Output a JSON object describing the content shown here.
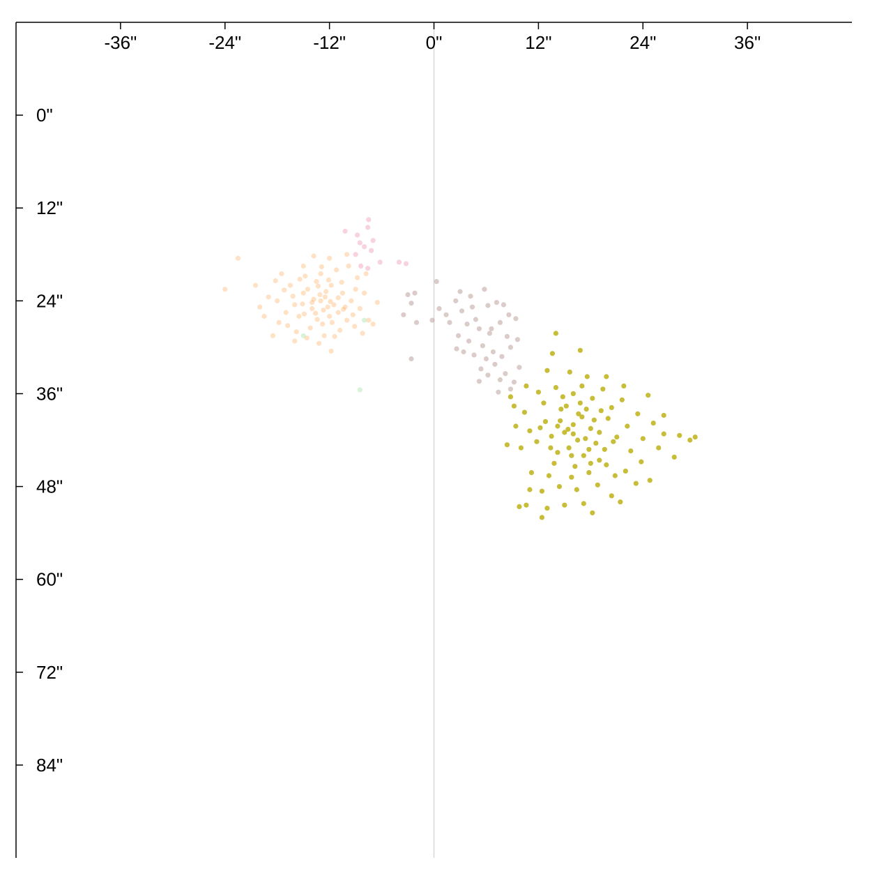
{
  "chart_data": {
    "type": "scatter",
    "title": "",
    "xlabel": "",
    "ylabel": "",
    "xlim": [
      -48,
      48
    ],
    "ylim": [
      -12,
      96
    ],
    "y_inverted": true,
    "x_axis_position": "top",
    "x_ticks": [
      {
        "value": -36,
        "label": "-36\""
      },
      {
        "value": -24,
        "label": "-24\""
      },
      {
        "value": -12,
        "label": "-12\""
      },
      {
        "value": 0,
        "label": "0\""
      },
      {
        "value": 12,
        "label": "12\""
      },
      {
        "value": 24,
        "label": "24\""
      },
      {
        "value": 36,
        "label": "36\""
      }
    ],
    "y_ticks": [
      {
        "value": 0,
        "label": "0\""
      },
      {
        "value": 12,
        "label": "12\""
      },
      {
        "value": 24,
        "label": "24\""
      },
      {
        "value": 36,
        "label": "36\""
      },
      {
        "value": 48,
        "label": "48\""
      },
      {
        "value": 60,
        "label": "60\""
      },
      {
        "value": 72,
        "label": "72\""
      },
      {
        "value": 84,
        "label": "84\""
      }
    ],
    "reference_line_x": 0,
    "grid": false,
    "series": [
      {
        "color": "#ff9f40",
        "opacity": 0.3,
        "points": [
          [
            -13,
            24
          ],
          [
            -12.5,
            23.5
          ],
          [
            -14,
            25
          ],
          [
            -11.5,
            24.5
          ],
          [
            -15,
            23
          ],
          [
            -12,
            26
          ],
          [
            -10.5,
            23
          ],
          [
            -13.5,
            21.5
          ],
          [
            -16,
            24.5
          ],
          [
            -11,
            25.5
          ],
          [
            -14.5,
            22.5
          ],
          [
            -12.8,
            27
          ],
          [
            -9.5,
            24
          ],
          [
            -17,
            25.5
          ],
          [
            -13,
            20.5
          ],
          [
            -10,
            26.5
          ],
          [
            -15.5,
            26
          ],
          [
            -11.8,
            22
          ],
          [
            -14.2,
            27.5
          ],
          [
            -12.2,
            24.8
          ],
          [
            -16.5,
            22
          ],
          [
            -8.5,
            25
          ],
          [
            -13.8,
            23.8
          ],
          [
            -11.2,
            20
          ],
          [
            -18,
            24
          ],
          [
            -9,
            22.5
          ],
          [
            -15.8,
            28
          ],
          [
            -12.6,
            28.5
          ],
          [
            -10.8,
            27.8
          ],
          [
            -14.8,
            20.8
          ],
          [
            -19.5,
            26
          ],
          [
            -20.5,
            22
          ],
          [
            -22.5,
            18.5
          ],
          [
            -24,
            22.5
          ],
          [
            -18.5,
            28.5
          ],
          [
            -13.2,
            29.5
          ],
          [
            -11.8,
            30.5
          ],
          [
            -8,
            23
          ],
          [
            -7.5,
            26.5
          ],
          [
            -9.8,
            19.5
          ],
          [
            -12,
            18.5
          ],
          [
            -15,
            19.5
          ],
          [
            -17.5,
            20.5
          ],
          [
            -16.8,
            27.2
          ],
          [
            -13.6,
            25.6
          ],
          [
            -12.4,
            22.8
          ],
          [
            -11,
            23.6
          ],
          [
            -14,
            24.2
          ],
          [
            -13.4,
            26.4
          ],
          [
            -10.2,
            24.8
          ],
          [
            -8.8,
            21
          ],
          [
            -16.2,
            23.4
          ],
          [
            -19,
            23.5
          ],
          [
            -17.8,
            26.8
          ],
          [
            -7,
            27
          ],
          [
            -8.2,
            28.2
          ],
          [
            -10.6,
            21.6
          ],
          [
            -12.9,
            19.6
          ],
          [
            -15.4,
            21.2
          ],
          [
            -11.4,
            28.6
          ],
          [
            -14.6,
            28.8
          ],
          [
            -13.1,
            23.2
          ],
          [
            -12.7,
            25.2
          ],
          [
            -11.7,
            26.8
          ],
          [
            -9.3,
            25.8
          ],
          [
            -17.2,
            22.6
          ],
          [
            -20,
            24.8
          ],
          [
            -6.5,
            24.2
          ],
          [
            -7.8,
            20.5
          ],
          [
            -10,
            18
          ],
          [
            -13.8,
            18.2
          ],
          [
            -16,
            29.2
          ],
          [
            -14.9,
            25.7
          ],
          [
            -12.1,
            21.3
          ],
          [
            -10.4,
            25.1
          ],
          [
            -11.9,
            24.1
          ],
          [
            -13.3,
            22.1
          ],
          [
            -15.1,
            24.4
          ],
          [
            -9.1,
            27.3
          ],
          [
            -18.2,
            21.4
          ]
        ]
      },
      {
        "color": "#f2a8c0",
        "opacity": 0.5,
        "points": [
          [
            -7.5,
            13.5
          ],
          [
            -7.6,
            14.5
          ],
          [
            -8.8,
            15.5
          ],
          [
            -8.5,
            16.5
          ],
          [
            -10.2,
            15
          ],
          [
            -8,
            17
          ],
          [
            -7.2,
            17.5
          ],
          [
            -8.4,
            19.5
          ],
          [
            -7.6,
            19.8
          ],
          [
            -6.2,
            19
          ],
          [
            -4,
            19
          ],
          [
            -3.2,
            19.2
          ],
          [
            -9,
            18
          ],
          [
            -7,
            16.2
          ]
        ]
      },
      {
        "color": "#b89a96",
        "opacity": 0.5,
        "points": [
          [
            0.3,
            21.5
          ],
          [
            -2.2,
            23
          ],
          [
            -3,
            23.2
          ],
          [
            -2.6,
            24.3
          ],
          [
            -3.5,
            25.8
          ],
          [
            -2,
            26.8
          ],
          [
            -0.2,
            26.5
          ],
          [
            0.6,
            25
          ],
          [
            -2.6,
            31.5
          ],
          [
            2.5,
            24
          ],
          [
            3.2,
            25.3
          ],
          [
            4.4,
            24.8
          ],
          [
            4.8,
            26.4
          ],
          [
            5.8,
            22.5
          ],
          [
            6.2,
            24.6
          ],
          [
            7.2,
            24.2
          ],
          [
            8,
            24.5
          ],
          [
            8.6,
            25.8
          ],
          [
            9.4,
            26.3
          ],
          [
            7.6,
            26.8
          ],
          [
            6.4,
            28.2
          ],
          [
            5.2,
            27.6
          ],
          [
            3.8,
            27
          ],
          [
            2.8,
            28.5
          ],
          [
            4,
            29.2
          ],
          [
            5.6,
            29.8
          ],
          [
            6.8,
            30.6
          ],
          [
            7.8,
            31.2
          ],
          [
            8.8,
            30
          ],
          [
            9.6,
            29
          ],
          [
            6,
            31.5
          ],
          [
            7,
            32.2
          ],
          [
            8.2,
            33.4
          ],
          [
            9.2,
            34.5
          ],
          [
            8.8,
            35.4
          ],
          [
            7.6,
            34.2
          ],
          [
            6.2,
            33.6
          ],
          [
            5.4,
            32.8
          ],
          [
            4.6,
            31
          ],
          [
            3.4,
            30.6
          ],
          [
            2.6,
            30.2
          ],
          [
            1.8,
            26.8
          ],
          [
            5.2,
            34.4
          ],
          [
            7.4,
            35.8
          ],
          [
            6.6,
            27.6
          ],
          [
            9.8,
            32.6
          ],
          [
            1.4,
            25.8
          ],
          [
            3,
            22.8
          ],
          [
            4.2,
            23.4
          ],
          [
            8.4,
            28.6
          ]
        ]
      },
      {
        "color": "#9de0a0",
        "opacity": 0.4,
        "points": [
          [
            -8,
            26.5
          ],
          [
            -8.5,
            35.5
          ],
          [
            -15,
            28.5
          ]
        ]
      },
      {
        "color": "#c4b92d",
        "opacity": 0.95,
        "points": [
          [
            16,
            40
          ],
          [
            17,
            39
          ],
          [
            15,
            41
          ],
          [
            18,
            40.5
          ],
          [
            14.5,
            39.5
          ],
          [
            16.5,
            42
          ],
          [
            17.5,
            38
          ],
          [
            15.5,
            43
          ],
          [
            19,
            41
          ],
          [
            13.5,
            41.5
          ],
          [
            16.8,
            37.2
          ],
          [
            18.6,
            42.4
          ],
          [
            14.2,
            43.6
          ],
          [
            20,
            39.2
          ],
          [
            12.8,
            39.6
          ],
          [
            17.2,
            44
          ],
          [
            15.2,
            37.6
          ],
          [
            19.6,
            43.2
          ],
          [
            13.8,
            45
          ],
          [
            21,
            41.6
          ],
          [
            11.8,
            42.2
          ],
          [
            16.2,
            45.4
          ],
          [
            18.2,
            36.6
          ],
          [
            14.8,
            36.4
          ],
          [
            20.4,
            37.8
          ],
          [
            12.6,
            37.2
          ],
          [
            22.2,
            40.2
          ],
          [
            11,
            40.8
          ],
          [
            17.8,
            46.2
          ],
          [
            15.8,
            46.8
          ],
          [
            19.8,
            45.2
          ],
          [
            13.2,
            46.6
          ],
          [
            22.6,
            43.4
          ],
          [
            10.4,
            38.4
          ],
          [
            21.6,
            36.8
          ],
          [
            14,
            35.2
          ],
          [
            17,
            35
          ],
          [
            19.4,
            35.4
          ],
          [
            12,
            35.8
          ],
          [
            23.4,
            38.6
          ],
          [
            10,
            43
          ],
          [
            24,
            41.8
          ],
          [
            20.8,
            46.6
          ],
          [
            16.4,
            48.4
          ],
          [
            14.4,
            48
          ],
          [
            18.8,
            47.8
          ],
          [
            12.4,
            48.6
          ],
          [
            22,
            46
          ],
          [
            11.2,
            46.2
          ],
          [
            25.2,
            39.8
          ],
          [
            9.4,
            40.2
          ],
          [
            23.8,
            44.8
          ],
          [
            9.2,
            37.6
          ],
          [
            25.8,
            43
          ],
          [
            17.6,
            33.8
          ],
          [
            15.6,
            33.2
          ],
          [
            19.8,
            33.8
          ],
          [
            13,
            33
          ],
          [
            21.8,
            35
          ],
          [
            10.6,
            35
          ],
          [
            24.6,
            36.2
          ],
          [
            8.4,
            42.6
          ],
          [
            26.4,
            41.2
          ],
          [
            8.8,
            36.4
          ],
          [
            23.2,
            47.6
          ],
          [
            11,
            48.4
          ],
          [
            20.4,
            49.2
          ],
          [
            15,
            50.4
          ],
          [
            13,
            50.8
          ],
          [
            17.2,
            50.2
          ],
          [
            10.6,
            50.4
          ],
          [
            12.4,
            52
          ],
          [
            16.8,
            30.4
          ],
          [
            13.6,
            30.8
          ],
          [
            14,
            28.2
          ],
          [
            26.4,
            38.8
          ],
          [
            28.2,
            41.4
          ],
          [
            30,
            41.6
          ],
          [
            29.4,
            42
          ],
          [
            27.6,
            44.2
          ],
          [
            24.8,
            47.2
          ],
          [
            9.8,
            50.6
          ],
          [
            21.4,
            50
          ],
          [
            18.2,
            51.4
          ],
          [
            16,
            41.2
          ],
          [
            17.4,
            41.8
          ],
          [
            15.4,
            40.6
          ],
          [
            16.6,
            38.6
          ],
          [
            18.4,
            39.4
          ],
          [
            14.2,
            40.2
          ],
          [
            17.8,
            43.2
          ],
          [
            15.8,
            44
          ],
          [
            19.2,
            38.2
          ],
          [
            13.4,
            43
          ],
          [
            20.6,
            42.2
          ],
          [
            12.2,
            40.4
          ],
          [
            18,
            45
          ],
          [
            16,
            36
          ],
          [
            14.6,
            38
          ],
          [
            19,
            44.6
          ]
        ]
      }
    ]
  }
}
